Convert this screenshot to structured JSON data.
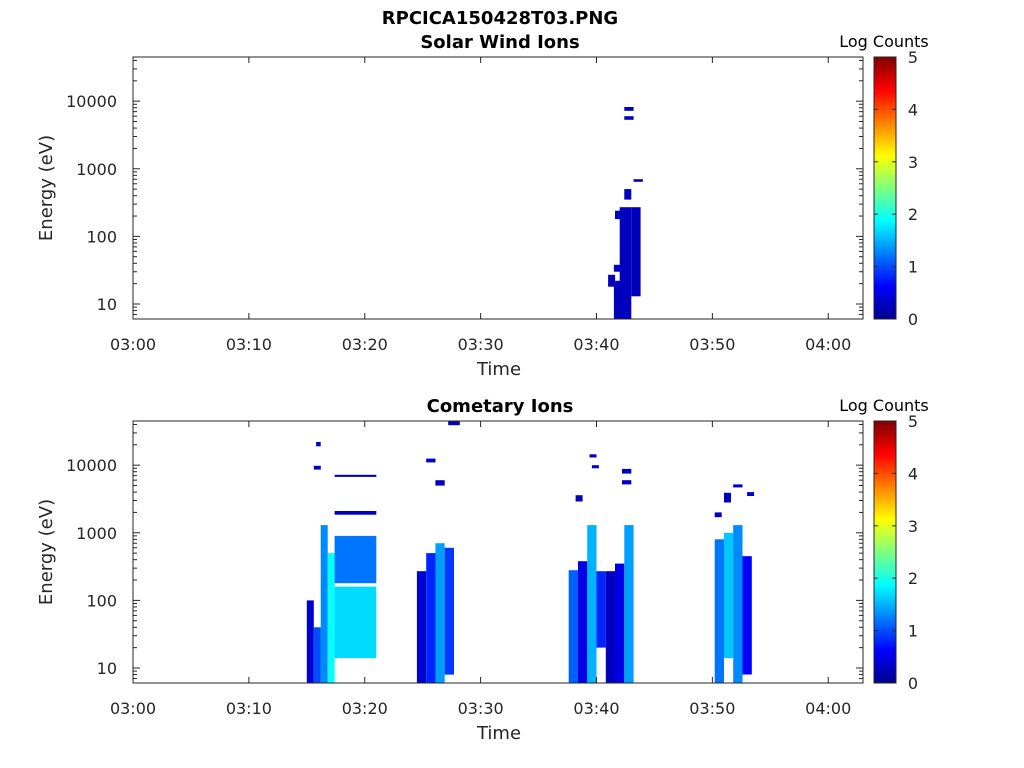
{
  "figure": {
    "title": "RPCICA150428T03.PNG"
  },
  "colorbar": {
    "label": "Log Counts",
    "min": 0,
    "max": 5,
    "ticks": [
      "0",
      "1",
      "2",
      "3",
      "4",
      "5"
    ],
    "colormap": "jet"
  },
  "chart_data": [
    {
      "type": "heatmap",
      "title": "Solar Wind Ions",
      "xlabel": "Time",
      "ylabel": "Energy (eV)",
      "yscale": "log",
      "xlim": [
        "03:00",
        "04:03"
      ],
      "ylim": [
        6,
        45000
      ],
      "xticks": [
        "03:00",
        "03:10",
        "03:20",
        "03:30",
        "03:40",
        "03:50",
        "04:00"
      ],
      "yticks": [
        "10",
        "100",
        "1000",
        "10000"
      ],
      "cells": [
        {
          "t0": "03:41.5",
          "t1": "03:42.5",
          "e0": 6,
          "e1": 22,
          "v": 0.3
        },
        {
          "t0": "03:41.0",
          "t1": "03:41.6",
          "e0": 18,
          "e1": 27,
          "v": 0.3
        },
        {
          "t0": "03:41.5",
          "t1": "03:42.5",
          "e0": 30,
          "e1": 38,
          "v": 0.3
        },
        {
          "t0": "03:42.0",
          "t1": "03:43.0",
          "e0": 6,
          "e1": 270,
          "v": 0.3
        },
        {
          "t0": "03:43.0",
          "t1": "03:43.8",
          "e0": 13,
          "e1": 270,
          "v": 0.3
        },
        {
          "t0": "03:41.6",
          "t1": "03:42.4",
          "e0": 180,
          "e1": 240,
          "v": 0.3
        },
        {
          "t0": "03:42.4",
          "t1": "03:43.0",
          "e0": 350,
          "e1": 500,
          "v": 0.3
        },
        {
          "t0": "03:43.2",
          "t1": "03:44.0",
          "e0": 640,
          "e1": 700,
          "v": 0.3
        },
        {
          "t0": "03:42.4",
          "t1": "03:43.2",
          "e0": 7200,
          "e1": 8200,
          "v": 0.3
        },
        {
          "t0": "03:42.4",
          "t1": "03:43.2",
          "e0": 5300,
          "e1": 6000,
          "v": 0.3
        }
      ]
    },
    {
      "type": "heatmap",
      "title": "Cometary Ions",
      "xlabel": "Time",
      "ylabel": "Energy (eV)",
      "yscale": "log",
      "xlim": [
        "03:00",
        "04:03"
      ],
      "ylim": [
        6,
        45000
      ],
      "xticks": [
        "03:00",
        "03:10",
        "03:20",
        "03:30",
        "03:40",
        "03:50",
        "04:00"
      ],
      "yticks": [
        "10",
        "100",
        "1000",
        "10000"
      ],
      "cells": [
        {
          "t0": "03:15.0",
          "t1": "03:15.6",
          "e0": 6,
          "e1": 100,
          "v": 0.4
        },
        {
          "t0": "03:15.6",
          "t1": "03:16.2",
          "e0": 6,
          "e1": 40,
          "v": 1.0
        },
        {
          "t0": "03:16.2",
          "t1": "03:16.8",
          "e0": 6,
          "e1": 1300,
          "v": 1.3
        },
        {
          "t0": "03:16.8",
          "t1": "03:17.4",
          "e0": 6,
          "e1": 500,
          "v": 1.9
        },
        {
          "t0": "03:17.4",
          "t1": "03:21.0",
          "e0": 180,
          "e1": 900,
          "v": 1.2
        },
        {
          "t0": "03:17.4",
          "t1": "03:21.0",
          "e0": 14,
          "e1": 160,
          "v": 1.7
        },
        {
          "t0": "03:17.4",
          "t1": "03:21.0",
          "e0": 1850,
          "e1": 2100,
          "v": 0.3
        },
        {
          "t0": "03:17.4",
          "t1": "03:21.0",
          "e0": 6700,
          "e1": 7200,
          "v": 0.3
        },
        {
          "t0": "03:15.6",
          "t1": "03:16.2",
          "e0": 8600,
          "e1": 9800,
          "v": 0.3
        },
        {
          "t0": "03:15.8",
          "t1": "03:16.2",
          "e0": 19000,
          "e1": 22000,
          "v": 0.3
        },
        {
          "t0": "03:24.5",
          "t1": "03:25.3",
          "e0": 6,
          "e1": 270,
          "v": 0.4
        },
        {
          "t0": "03:25.3",
          "t1": "03:26.1",
          "e0": 6,
          "e1": 500,
          "v": 0.8
        },
        {
          "t0": "03:26.1",
          "t1": "03:26.9",
          "e0": 6,
          "e1": 700,
          "v": 1.4
        },
        {
          "t0": "03:26.9",
          "t1": "03:27.7",
          "e0": 8,
          "e1": 600,
          "v": 0.9
        },
        {
          "t0": "03:25.3",
          "t1": "03:26.1",
          "e0": 11000,
          "e1": 12500,
          "v": 0.3
        },
        {
          "t0": "03:26.1",
          "t1": "03:26.9",
          "e0": 5000,
          "e1": 6000,
          "v": 0.3
        },
        {
          "t0": "03:27.2",
          "t1": "03:28.2",
          "e0": 39000,
          "e1": 45000,
          "v": 0.3
        },
        {
          "t0": "03:37.6",
          "t1": "03:38.4",
          "e0": 6,
          "e1": 280,
          "v": 1.1
        },
        {
          "t0": "03:38.4",
          "t1": "03:39.2",
          "e0": 6,
          "e1": 380,
          "v": 0.5
        },
        {
          "t0": "03:39.2",
          "t1": "03:40.0",
          "e0": 6,
          "e1": 1300,
          "v": 1.5
        },
        {
          "t0": "03:40.0",
          "t1": "03:40.8",
          "e0": 20,
          "e1": 270,
          "v": 0.8
        },
        {
          "t0": "03:40.8",
          "t1": "03:41.6",
          "e0": 6,
          "e1": 270,
          "v": 0.3
        },
        {
          "t0": "03:41.6",
          "t1": "03:42.4",
          "e0": 6,
          "e1": 350,
          "v": 0.5
        },
        {
          "t0": "03:42.4",
          "t1": "03:43.2",
          "e0": 6,
          "e1": 1300,
          "v": 1.4
        },
        {
          "t0": "03:38.2",
          "t1": "03:38.8",
          "e0": 2900,
          "e1": 3600,
          "v": 0.3
        },
        {
          "t0": "03:39.6",
          "t1": "03:40.2",
          "e0": 9000,
          "e1": 10000,
          "v": 0.3
        },
        {
          "t0": "03:39.4",
          "t1": "03:40.0",
          "e0": 13000,
          "e1": 14500,
          "v": 0.3
        },
        {
          "t0": "03:42.2",
          "t1": "03:43.0",
          "e0": 7500,
          "e1": 8800,
          "v": 0.3
        },
        {
          "t0": "03:42.2",
          "t1": "03:43.0",
          "e0": 5200,
          "e1": 6000,
          "v": 0.3
        },
        {
          "t0": "03:50.2",
          "t1": "03:51.0",
          "e0": 6,
          "e1": 800,
          "v": 1.2
        },
        {
          "t0": "03:51.0",
          "t1": "03:51.8",
          "e0": 14,
          "e1": 1000,
          "v": 1.6
        },
        {
          "t0": "03:51.8",
          "t1": "03:52.6",
          "e0": 6,
          "e1": 1300,
          "v": 1.3
        },
        {
          "t0": "03:52.6",
          "t1": "03:53.4",
          "e0": 8,
          "e1": 450,
          "v": 0.6
        },
        {
          "t0": "03:51.0",
          "t1": "03:51.6",
          "e0": 2800,
          "e1": 3900,
          "v": 0.3
        },
        {
          "t0": "03:51.8",
          "t1": "03:52.6",
          "e0": 4700,
          "e1": 5200,
          "v": 0.3
        },
        {
          "t0": "03:53.0",
          "t1": "03:53.6",
          "e0": 3500,
          "e1": 4000,
          "v": 0.3
        },
        {
          "t0": "03:50.2",
          "t1": "03:50.8",
          "e0": 1700,
          "e1": 2000,
          "v": 0.3
        }
      ]
    }
  ]
}
